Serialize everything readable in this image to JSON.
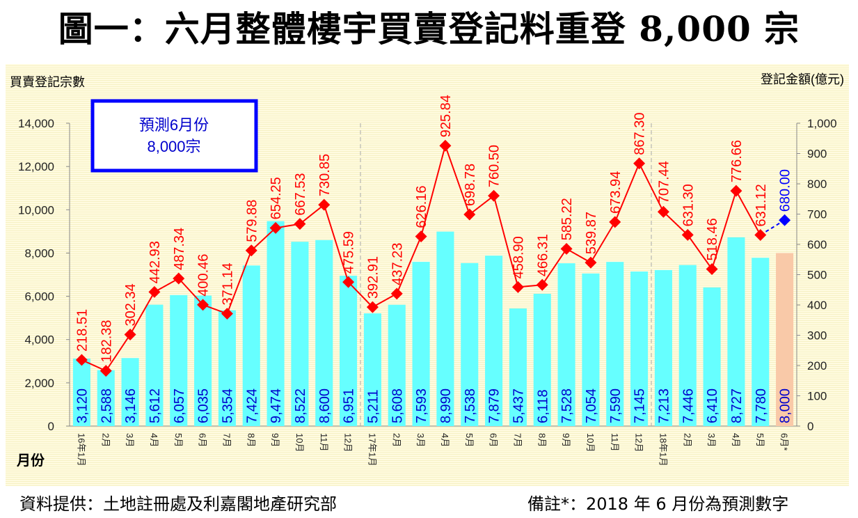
{
  "title": "圖一：六月整體樓宇買賣登記料重登 8,000 宗",
  "source": "資料提供：土地註冊處及利嘉閣地產研究部",
  "note": "備註*：2018 年 6 月份為預測數字",
  "callout": {
    "line1": "預測6月份",
    "line2": "8,000宗"
  },
  "chart_data": {
    "type": "bar+line",
    "ylabel_left": "買賣登記宗數",
    "ylabel_right": "登記金額(億元)",
    "xlabel": "月份",
    "ylim_left": [
      0,
      14000
    ],
    "ylim_right": [
      0,
      1000
    ],
    "yticks_left": [
      "0",
      "2,000",
      "4,000",
      "6,000",
      "8,000",
      "10,000",
      "12,000",
      "14,000"
    ],
    "yticks_right": [
      "0",
      "100",
      "200",
      "300",
      "400",
      "500",
      "600",
      "700",
      "800",
      "900",
      "1,000"
    ],
    "categories": [
      "16年1月",
      "2月",
      "3月",
      "4月",
      "5月",
      "6月",
      "7月",
      "8月",
      "9月",
      "10月",
      "11月",
      "12月",
      "17年1月",
      "2月",
      "3月",
      "4月",
      "5月",
      "6月",
      "7月",
      "8月",
      "9月",
      "10月",
      "11月",
      "12月",
      "18年1月",
      "2月",
      "3月",
      "4月",
      "5月",
      "6月*"
    ],
    "series": [
      {
        "name": "買賣登記宗數",
        "type": "bar",
        "color": "#66ffff",
        "forecast_color": "#f9c9a8",
        "values": [
          3120,
          2588,
          3146,
          5612,
          6057,
          6035,
          5354,
          7424,
          9474,
          8522,
          8600,
          6951,
          5211,
          5608,
          7593,
          8990,
          7538,
          7879,
          5437,
          6118,
          7528,
          7054,
          7590,
          7145,
          7213,
          7446,
          6410,
          8727,
          7780,
          8000
        ],
        "labels": [
          "3,120",
          "2,588",
          "3,146",
          "5,612",
          "6,057",
          "6,035",
          "5,354",
          "7,424",
          "9,474",
          "8,522",
          "8,600",
          "6,951",
          "5,211",
          "5,608",
          "7,593",
          "8,990",
          "7,538",
          "7,879",
          "5,437",
          "6,118",
          "7,528",
          "7,054",
          "7,590",
          "7,145",
          "7,213",
          "7,446",
          "6,410",
          "8,727",
          "7,780",
          "8,000"
        ]
      },
      {
        "name": "登記金額(億元)",
        "type": "line",
        "color": "#ff0000",
        "forecast_color": "#0000ff",
        "values": [
          218.51,
          182.38,
          302.34,
          442.93,
          487.34,
          400.46,
          371.14,
          579.88,
          654.25,
          667.53,
          730.85,
          475.59,
          392.91,
          437.23,
          626.16,
          925.84,
          698.78,
          760.5,
          458.9,
          466.31,
          585.22,
          539.87,
          673.94,
          867.3,
          707.44,
          631.3,
          518.46,
          776.66,
          631.12,
          680.0
        ],
        "labels": [
          "218.51",
          "182.38",
          "302.34",
          "442.93",
          "487.34",
          "400.46",
          "371.14",
          "579.88",
          "654.25",
          "667.53",
          "730.85",
          "475.59",
          "392.91",
          "437.23",
          "626.16",
          "925.84",
          "698.78",
          "760.50",
          "458.90",
          "466.31",
          "585.22",
          "539.87",
          "673.94",
          "867.30",
          "707.44",
          "631.30",
          "518.46",
          "776.66",
          "631.12",
          "680.00"
        ]
      }
    ],
    "year_separators_after": [
      11,
      23
    ]
  }
}
